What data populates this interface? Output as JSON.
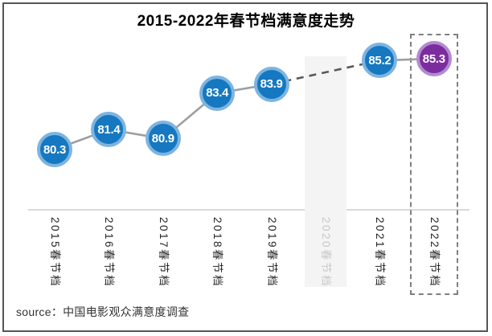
{
  "chart_data": {
    "type": "line",
    "title": "2015-2022年春节档满意度走势",
    "categories": [
      "2015春节档",
      "2016春节档",
      "2017春节档",
      "2018春节档",
      "2019春节档",
      "2020春节档",
      "2021春节档",
      "2022春节档"
    ],
    "values": [
      80.3,
      81.4,
      80.9,
      83.4,
      83.9,
      null,
      85.2,
      85.3
    ],
    "xlabel": "",
    "ylabel": "",
    "ylim": [
      78,
      87
    ],
    "legend_position": "none",
    "grid": false,
    "missing_category": "2020春节档",
    "highlight_category": "2022春节档",
    "colors": {
      "point_fill": "#1578c0",
      "point_ring": "#7db4e0",
      "highlight_fill": "#7b2d9e",
      "highlight_ring": "#b38ad2",
      "value_text": "#ffffff",
      "solid_line": "#9d9ea0",
      "dashed_line": "#58595b",
      "axis_line": "#d9d9d9",
      "label_text": "#262626",
      "muted_label_text": "#c8c8c8",
      "missing_band": "#f4f4f5",
      "highlight_box_border": "#7f7f7f",
      "title_text": "#000000",
      "frame_border": "#55565a"
    }
  },
  "source_label": "source：中国电影观众满意度调查"
}
